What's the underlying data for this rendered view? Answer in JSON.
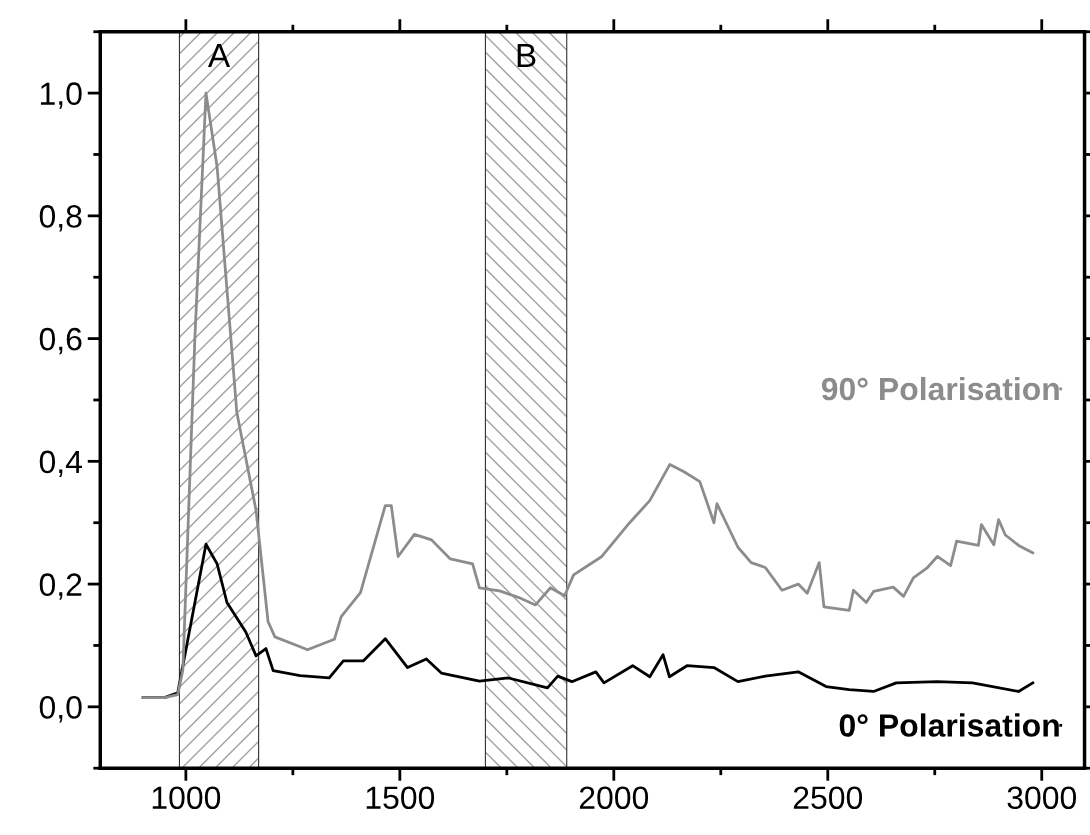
{
  "chart_data": {
    "type": "line",
    "xlim": [
      800,
      3100
    ],
    "ylim": [
      -0.1,
      1.1
    ],
    "xticks": [
      1000,
      1500,
      2000,
      2500,
      3000
    ],
    "yticks": [
      {
        "value": 0,
        "label": "0,0"
      },
      {
        "value": 0.2,
        "label": "0,2"
      },
      {
        "value": 0.4,
        "label": "0,4"
      },
      {
        "value": 0.6,
        "label": "0,6"
      },
      {
        "value": 0.8,
        "label": "0,8"
      },
      {
        "value": 1.0,
        "label": "1,0"
      }
    ],
    "grid": false,
    "legend": "right",
    "marker": "none",
    "line_style": "solid",
    "bands": [
      {
        "axis": "x",
        "from": 985,
        "to": 1170,
        "label": "A",
        "color": "#a0a0a0"
      },
      {
        "axis": "x",
        "from": 1700,
        "to": 1890,
        "label": "B",
        "color": "#a0a0a0"
      }
    ],
    "series": [
      {
        "name": "0° Polarisation",
        "color": "#000000",
        "x": [
          900,
          950,
          981,
          1047,
          1073,
          1096,
          1140,
          1164,
          1187,
          1204,
          1267,
          1335,
          1368,
          1415,
          1466,
          1518,
          1562,
          1597,
          1686,
          1754,
          1845,
          1869,
          1902,
          1958,
          1977,
          2044,
          2084,
          2115,
          2130,
          2171,
          2234,
          2290,
          2354,
          2431,
          2496,
          2550,
          2607,
          2660,
          2756,
          2838,
          2946,
          2979
        ],
        "values": [
          0.015,
          0.015,
          0.023,
          0.265,
          0.233,
          0.17,
          0.122,
          0.083,
          0.095,
          0.059,
          0.051,
          0.047,
          0.075,
          0.075,
          0.111,
          0.064,
          0.078,
          0.055,
          0.042,
          0.047,
          0.031,
          0.05,
          0.041,
          0.057,
          0.039,
          0.067,
          0.049,
          0.085,
          0.049,
          0.067,
          0.064,
          0.041,
          0.05,
          0.057,
          0.033,
          0.028,
          0.025,
          0.039,
          0.041,
          0.039,
          0.025,
          0.039
        ]
      },
      {
        "name": "90° Polarisation",
        "color": "#8c8c8c",
        "x": [
          900,
          950,
          981,
          993,
          1021,
          1047,
          1073,
          1096,
          1119,
          1164,
          1192,
          1208,
          1267,
          1284,
          1347,
          1363,
          1408,
          1466,
          1480,
          1496,
          1534,
          1574,
          1618,
          1670,
          1686,
          1733,
          1778,
          1817,
          1852,
          1885,
          1906,
          1972,
          2037,
          2084,
          2131,
          2164,
          2201,
          2234,
          2241,
          2290,
          2321,
          2354,
          2393,
          2431,
          2452,
          2480,
          2491,
          2550,
          2560,
          2590,
          2607,
          2653,
          2677,
          2700,
          2733,
          2756,
          2787,
          2801,
          2852,
          2859,
          2888,
          2899,
          2915,
          2946,
          2979
        ],
        "values": [
          0.015,
          0.015,
          0.02,
          0.06,
          0.6,
          1.0,
          0.88,
          0.68,
          0.48,
          0.32,
          0.139,
          0.114,
          0.098,
          0.093,
          0.11,
          0.147,
          0.186,
          0.328,
          0.328,
          0.245,
          0.281,
          0.272,
          0.241,
          0.233,
          0.194,
          0.189,
          0.178,
          0.166,
          0.194,
          0.181,
          0.215,
          0.245,
          0.3,
          0.336,
          0.395,
          0.383,
          0.367,
          0.3,
          0.331,
          0.26,
          0.235,
          0.227,
          0.19,
          0.2,
          0.185,
          0.235,
          0.163,
          0.157,
          0.19,
          0.17,
          0.188,
          0.195,
          0.18,
          0.21,
          0.227,
          0.245,
          0.23,
          0.27,
          0.263,
          0.297,
          0.264,
          0.305,
          0.28,
          0.263,
          0.251
        ]
      }
    ]
  }
}
